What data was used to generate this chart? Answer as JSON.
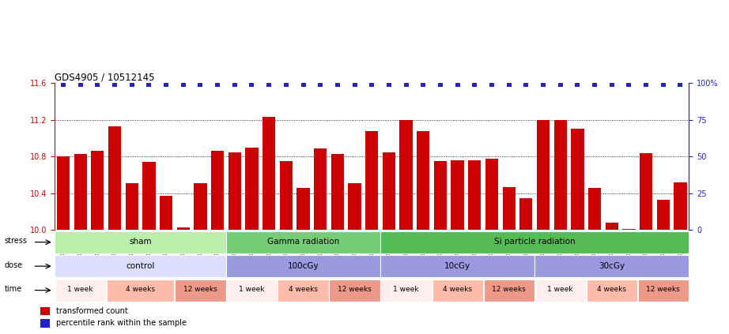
{
  "title": "GDS4905 / 10512145",
  "samples": [
    "GSM1176963",
    "GSM1176964",
    "GSM1176965",
    "GSM1176975",
    "GSM1176976",
    "GSM1176977",
    "GSM1176978",
    "GSM1176988",
    "GSM1176989",
    "GSM1176990",
    "GSM1176954",
    "GSM1176955",
    "GSM1176956",
    "GSM1176966",
    "GSM1176967",
    "GSM1176968",
    "GSM1176979",
    "GSM1176980",
    "GSM1176981",
    "GSM1176960",
    "GSM1176961",
    "GSM1176962",
    "GSM1176972",
    "GSM1176973",
    "GSM1176974",
    "GSM1176985",
    "GSM1176986",
    "GSM1176987",
    "GSM1176957",
    "GSM1176958",
    "GSM1176959",
    "GSM1176969",
    "GSM1176970",
    "GSM1176971",
    "GSM1176982",
    "GSM1176983",
    "GSM1176984"
  ],
  "bar_values": [
    10.8,
    10.83,
    10.86,
    11.13,
    10.51,
    10.74,
    10.37,
    10.03,
    10.51,
    10.86,
    10.85,
    10.9,
    11.23,
    10.75,
    10.46,
    10.89,
    10.83,
    10.51,
    11.08,
    10.85,
    11.2,
    11.08,
    10.75,
    10.76,
    10.76,
    10.78,
    10.47,
    10.35,
    11.2,
    11.2,
    11.1,
    10.46,
    10.08,
    10.01,
    10.84,
    10.33,
    10.52
  ],
  "bar_color": "#cc0000",
  "percentile_color": "#2222cc",
  "ymin": 10.0,
  "ymax": 11.6,
  "yticks": [
    10.0,
    10.4,
    10.8,
    11.2,
    11.6
  ],
  "right_yticks": [
    0,
    25,
    50,
    75,
    100
  ],
  "stress_groups": [
    {
      "label": "sham",
      "start": 0,
      "end": 10,
      "color": "#bbeeaa"
    },
    {
      "label": "Gamma radiation",
      "start": 10,
      "end": 19,
      "color": "#77cc77"
    },
    {
      "label": "Si particle radiation",
      "start": 19,
      "end": 37,
      "color": "#55bb55"
    }
  ],
  "dose_groups": [
    {
      "label": "control",
      "start": 0,
      "end": 10,
      "color": "#ddddff"
    },
    {
      "label": "100cGy",
      "start": 10,
      "end": 19,
      "color": "#9999dd"
    },
    {
      "label": "10cGy",
      "start": 19,
      "end": 28,
      "color": "#9999dd"
    },
    {
      "label": "30cGy",
      "start": 28,
      "end": 37,
      "color": "#9999dd"
    }
  ],
  "time_groups": [
    {
      "label": "1 week",
      "start": 0,
      "end": 3,
      "color": "#ffeeee"
    },
    {
      "label": "4 weeks",
      "start": 3,
      "end": 7,
      "color": "#ffbbaa"
    },
    {
      "label": "12 weeks",
      "start": 7,
      "end": 10,
      "color": "#ee9988"
    },
    {
      "label": "1 week",
      "start": 10,
      "end": 13,
      "color": "#ffeeee"
    },
    {
      "label": "4 weeks",
      "start": 13,
      "end": 16,
      "color": "#ffbbaa"
    },
    {
      "label": "12 weeks",
      "start": 16,
      "end": 19,
      "color": "#ee9988"
    },
    {
      "label": "1 week",
      "start": 19,
      "end": 22,
      "color": "#ffeeee"
    },
    {
      "label": "4 weeks",
      "start": 22,
      "end": 25,
      "color": "#ffbbaa"
    },
    {
      "label": "12 weeks",
      "start": 25,
      "end": 28,
      "color": "#ee9988"
    },
    {
      "label": "1 week",
      "start": 28,
      "end": 31,
      "color": "#ffeeee"
    },
    {
      "label": "4 weeks",
      "start": 31,
      "end": 34,
      "color": "#ffbbaa"
    },
    {
      "label": "12 weeks",
      "start": 34,
      "end": 37,
      "color": "#ee9988"
    }
  ],
  "background_color": "#ffffff"
}
